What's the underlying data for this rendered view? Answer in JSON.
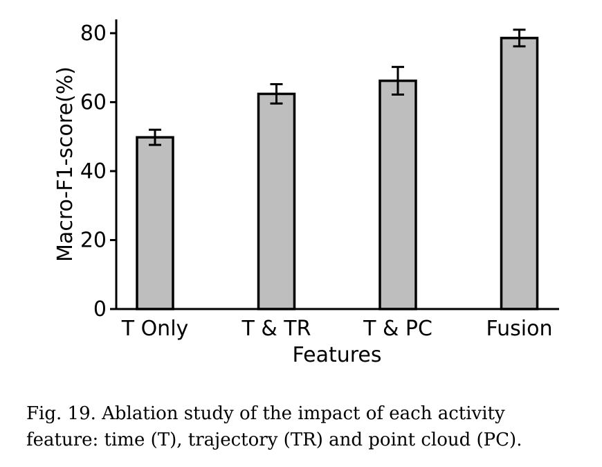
{
  "chart_data": {
    "type": "bar",
    "categories": [
      "T Only",
      "T & TR",
      "T & PC",
      "Fusion"
    ],
    "values": [
      49.8,
      62.4,
      66.2,
      78.6
    ],
    "error": [
      2.2,
      2.8,
      4.0,
      2.4
    ],
    "xlabel": "Features",
    "ylabel": "Macro-F1-score(%)",
    "ylim": [
      0,
      84
    ],
    "yticks": [
      0,
      20,
      40,
      60,
      80
    ],
    "grid": false,
    "colors": {
      "bar_fill": "#bebebe",
      "bar_stroke": "#000000",
      "axis": "#000000"
    }
  },
  "caption": {
    "line1": "Fig. 19.  Ablation study of the impact of each activity",
    "line2": "feature: time (T), trajectory (TR) and point cloud (PC)."
  }
}
